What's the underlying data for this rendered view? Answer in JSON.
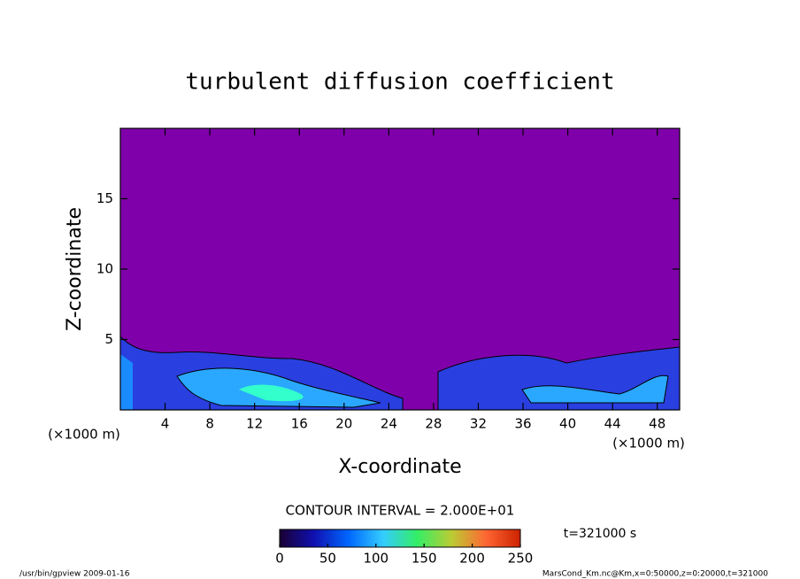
{
  "chart_data": {
    "type": "contour",
    "title": "turbulent diffusion coefficient",
    "x_label": "X-coordinate",
    "y_label": "Z-coordinate",
    "x_unit": "(×1000 m)",
    "y_unit": "(×1000 m)",
    "xlim": [
      0,
      50
    ],
    "xticks": [
      4,
      8,
      12,
      16,
      20,
      24,
      28,
      32,
      36,
      40,
      44,
      48
    ],
    "ylim": [
      0,
      20
    ],
    "yticks": [
      5,
      10,
      15
    ],
    "field_color": "#7f00aa",
    "contour_interval": "CONTOUR INTERVAL = 2.000E+01",
    "time_label": "t=321000 s",
    "colorbar": {
      "lim": [
        0,
        250
      ],
      "ticks": [
        0,
        50,
        100,
        150,
        200,
        250
      ],
      "colors": [
        "#1a0033",
        "#1010b0",
        "#0066ff",
        "#33ccff",
        "#33ee66",
        "#bbcc33",
        "#ff6633",
        "#cc2200"
      ]
    },
    "footer_left": "/usr/bin/gpview  2009-01-16",
    "footer_right": "MarsCond_Km.nc@Km,x=0:50000,z=0:20000,t=321000"
  }
}
